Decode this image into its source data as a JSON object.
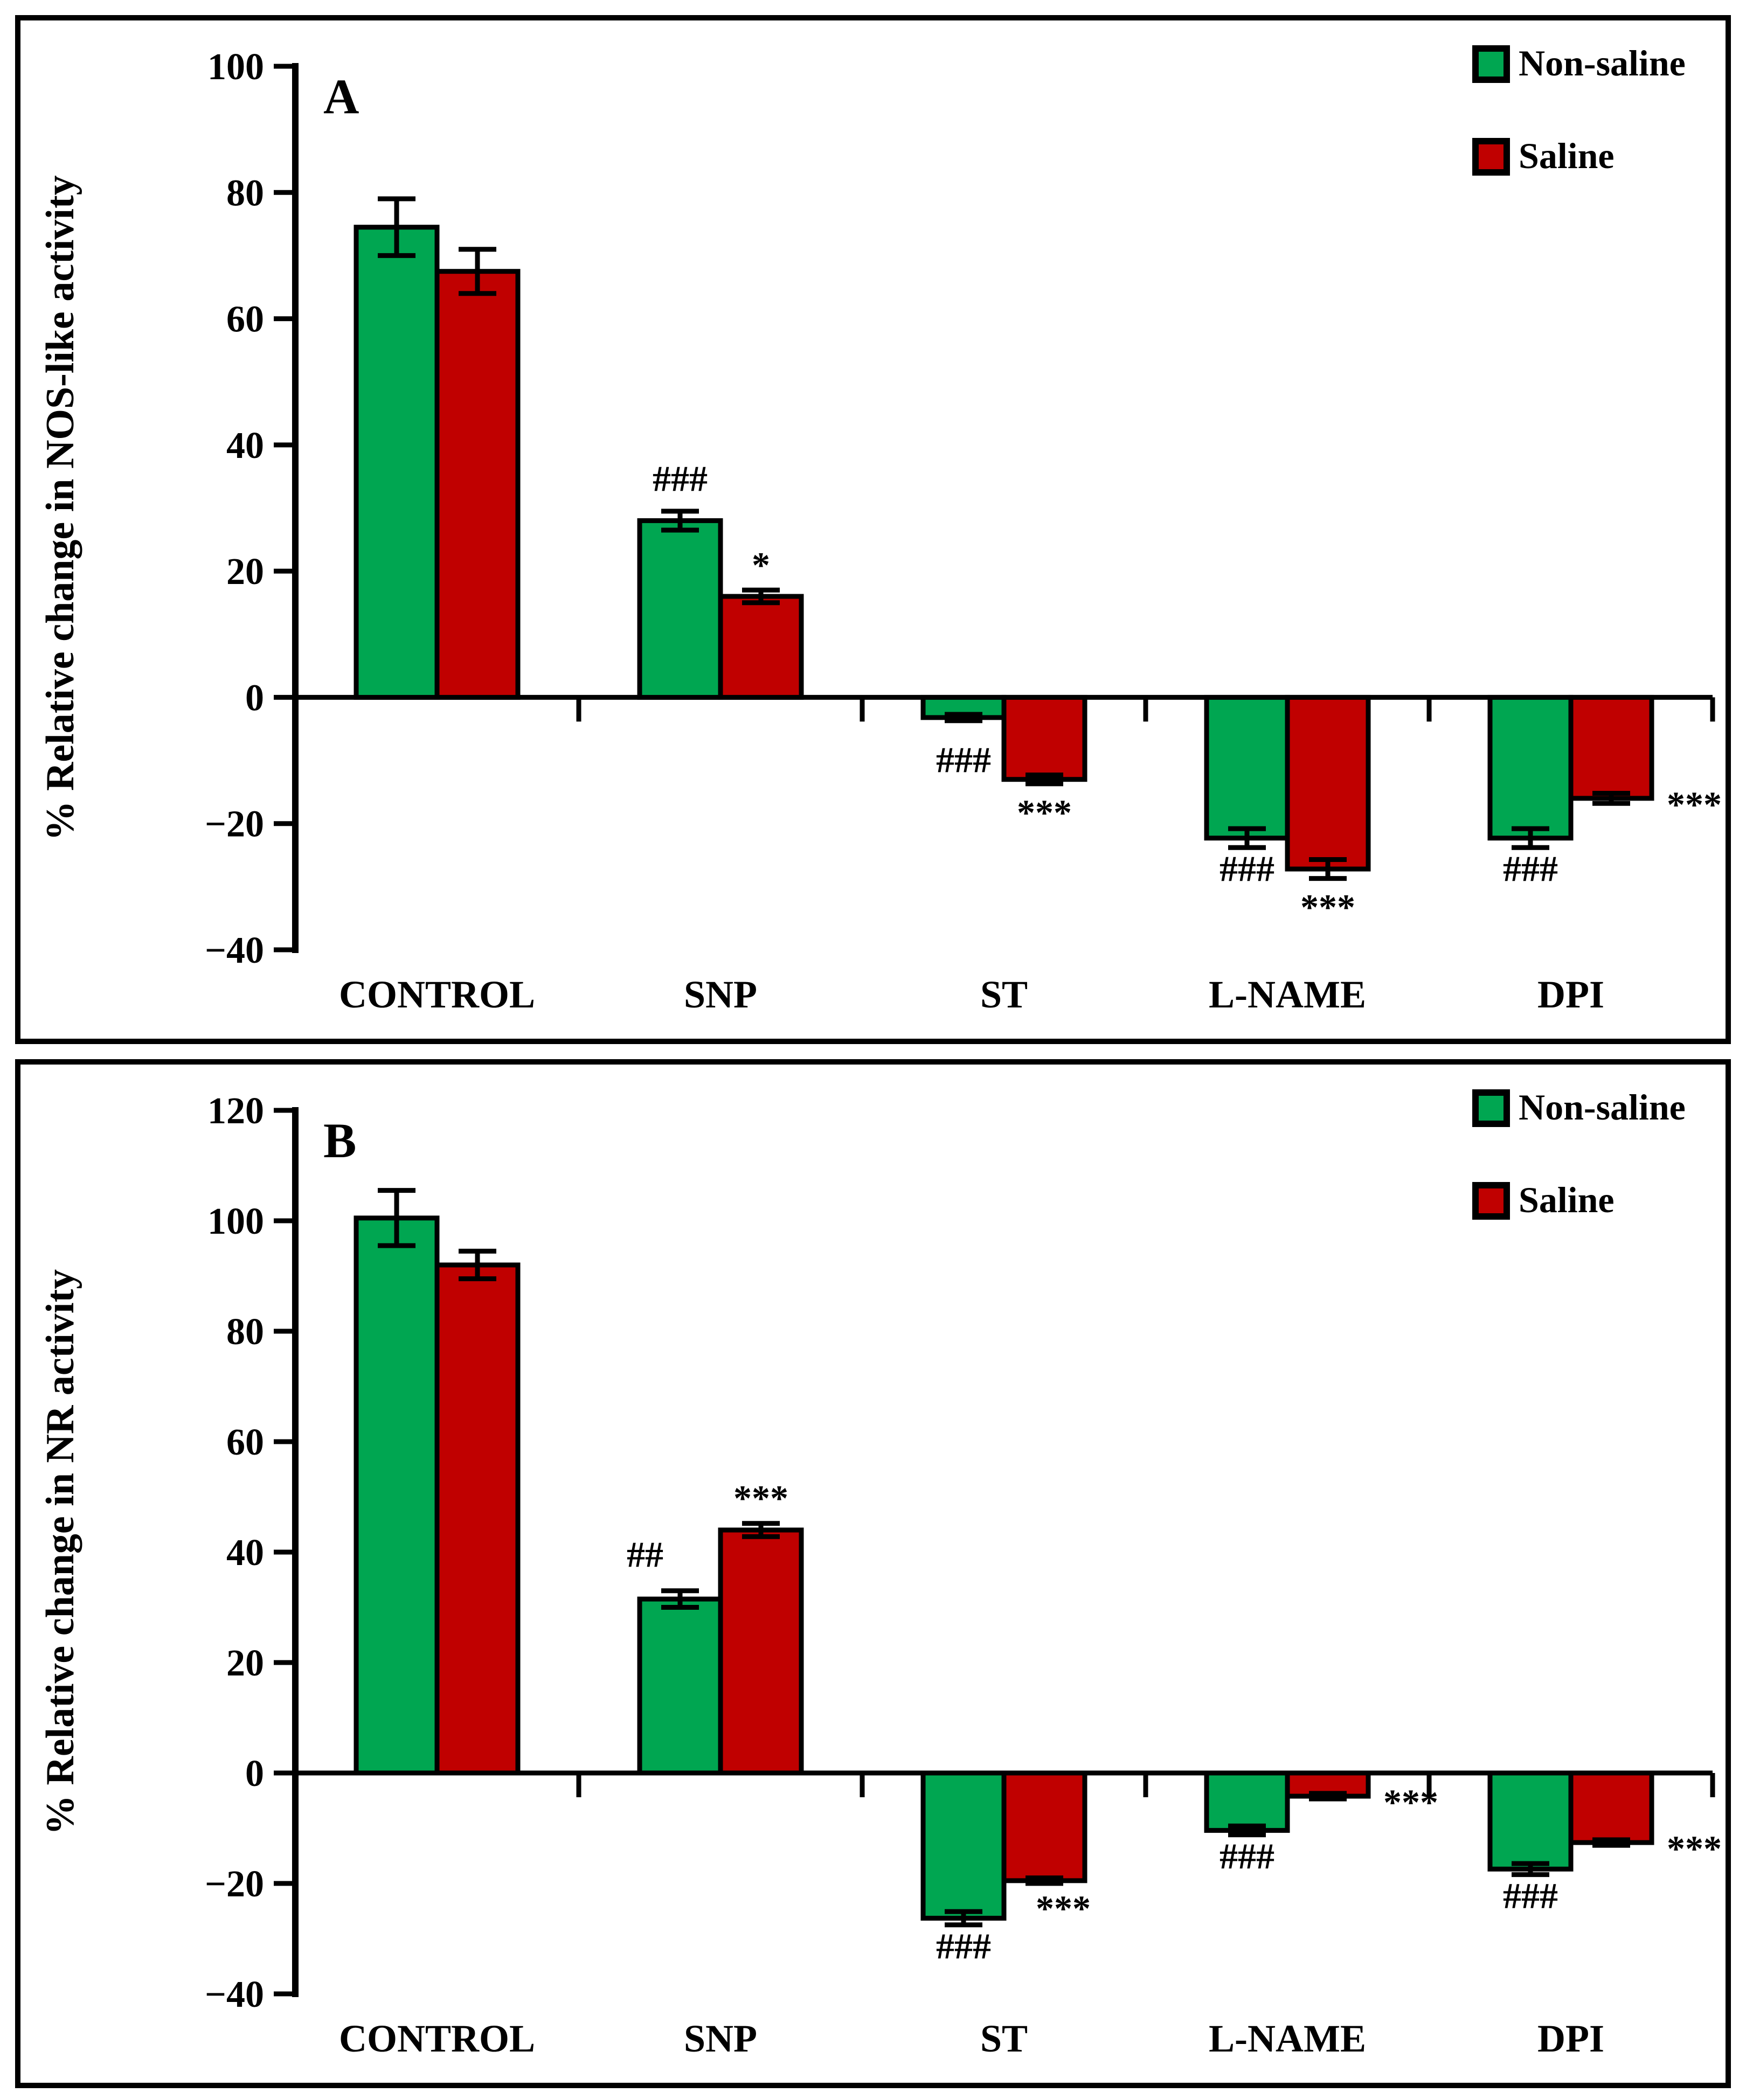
{
  "figure": {
    "background": "#FFFFFF",
    "frame_color": "#000000",
    "legend": {
      "items": [
        {
          "label": "Non-saline",
          "color": "#00A651"
        },
        {
          "label": "Saline",
          "color": "#C00000"
        }
      ],
      "position": "top-right"
    }
  },
  "chart_data": [
    {
      "type": "bar",
      "panel_label": "A",
      "title": "",
      "xlabel": "",
      "ylabel": "% Relative change in NOS-like activity",
      "ylim": [
        -40,
        100
      ],
      "ytick_step": 20,
      "grid": false,
      "legend_position": "top-right",
      "categories": [
        "CONTROL",
        "SNP",
        "ST",
        "L-NAME",
        "DPI"
      ],
      "series": [
        {
          "name": "Non-saline",
          "color": "#00A651",
          "values": [
            74.5,
            28,
            -3.2,
            -22.3,
            -22.3
          ],
          "errors": [
            4.5,
            1.5,
            0.5,
            1.5,
            1.5
          ],
          "annotations": [
            null,
            {
              "text": "###",
              "placement": "above"
            },
            {
              "text": "###",
              "placement": "below-far"
            },
            {
              "text": "###",
              "placement": "below"
            },
            {
              "text": "###",
              "placement": "below"
            }
          ]
        },
        {
          "name": "Saline",
          "color": "#C00000",
          "values": [
            67.5,
            16,
            -13,
            -27.2,
            -16
          ],
          "errors": [
            3.5,
            1.0,
            0.7,
            1.5,
            0.8
          ],
          "annotations": [
            null,
            {
              "text": "*",
              "placement": "above"
            },
            {
              "text": "***",
              "placement": "below"
            },
            {
              "text": "***",
              "placement": "below"
            },
            {
              "text": "***",
              "placement": "right"
            }
          ]
        }
      ]
    },
    {
      "type": "bar",
      "panel_label": "B",
      "title": "",
      "xlabel": "",
      "ylabel": "% Relative change in NR activity",
      "ylim": [
        -40,
        120
      ],
      "ytick_step": 20,
      "grid": false,
      "legend_position": "top-right",
      "categories": [
        "CONTROL",
        "SNP",
        "ST",
        "L-NAME",
        "DPI"
      ],
      "series": [
        {
          "name": "Non-saline",
          "color": "#00A651",
          "values": [
            100.5,
            31.5,
            -26.3,
            -10.4,
            -17.4
          ],
          "errors": [
            5.0,
            1.5,
            1.2,
            0.8,
            1.0
          ],
          "annotations": [
            null,
            {
              "text": "##",
              "placement": "above-left"
            },
            {
              "text": "###",
              "placement": "below"
            },
            {
              "text": "###",
              "placement": "below"
            },
            {
              "text": "###",
              "placement": "below"
            }
          ]
        },
        {
          "name": "Saline",
          "color": "#C00000",
          "values": [
            92,
            44,
            -19.5,
            -4.2,
            -12.6
          ],
          "errors": [
            2.5,
            1.2,
            0.5,
            0.5,
            0.5
          ],
          "annotations": [
            null,
            {
              "text": "***",
              "placement": "above"
            },
            {
              "text": "***",
              "placement": "below-near"
            },
            {
              "text": "***",
              "placement": "right"
            },
            {
              "text": "***",
              "placement": "right"
            }
          ]
        }
      ]
    }
  ]
}
